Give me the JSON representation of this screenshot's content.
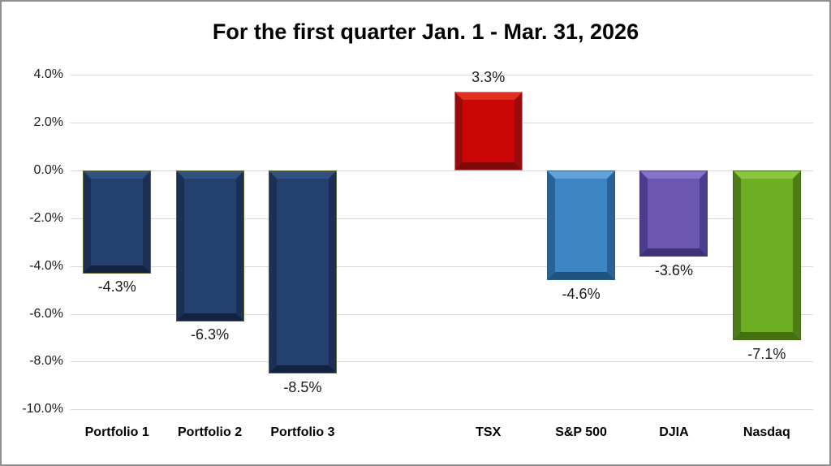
{
  "chart_data": {
    "type": "bar",
    "title": "For the first quarter Jan. 1 - Mar. 31, 2026",
    "categories": [
      "Portfolio 1",
      "Portfolio 2",
      "Portfolio 3",
      "",
      "TSX",
      "S&P 500",
      "DJIA",
      "Nasdaq"
    ],
    "values": [
      -4.3,
      -6.3,
      -8.5,
      null,
      3.3,
      -4.6,
      -3.6,
      -7.1
    ],
    "data_labels": [
      "-4.3%",
      "-6.3%",
      "-8.5%",
      null,
      "3.3%",
      "-4.6%",
      "-3.6%",
      "-7.1%"
    ],
    "bar_colors": [
      {
        "face": "#24406E",
        "light": "#32517F",
        "side": "#1B3054",
        "dark": "#13233F",
        "outline": "#50642B"
      },
      {
        "face": "#24406E",
        "light": "#32517F",
        "side": "#1B3054",
        "dark": "#13233F",
        "outline": "#50642B"
      },
      {
        "face": "#24406E",
        "light": "#32517F",
        "side": "#1B3054",
        "dark": "#13233F",
        "outline": "#50642B"
      },
      null,
      {
        "face": "#CB0606",
        "light": "#E03120",
        "side": "#9A0B0B",
        "dark": "#7E0909",
        "outline": "#C97D7D"
      },
      {
        "face": "#3E85C4",
        "light": "#61A2D8",
        "side": "#2A6296",
        "dark": "#1F527F",
        "outline": "#2C5E8C"
      },
      {
        "face": "#6B57B0",
        "light": "#8672C6",
        "side": "#4C3C8E",
        "dark": "#3F3178",
        "outline": "#473879"
      },
      {
        "face": "#6DAE23",
        "light": "#8BC63F",
        "side": "#4E7D18",
        "dark": "#447012",
        "outline": "#3F6B14"
      }
    ],
    "y_ticks": [
      {
        "label": "4.0%",
        "value": 4
      },
      {
        "label": "2.0%",
        "value": 2
      },
      {
        "label": "0.0%",
        "value": 0
      },
      {
        "label": "-2.0%",
        "value": -2
      },
      {
        "label": "-4.0%",
        "value": -4
      },
      {
        "label": "-6.0%",
        "value": -6
      },
      {
        "label": "-8.0%",
        "value": -8
      },
      {
        "label": "-10.0%",
        "value": -10
      }
    ],
    "ylim": [
      -10,
      4
    ],
    "xlabel": "",
    "ylabel": "",
    "grid": true,
    "legend": "none"
  },
  "colors": {
    "background": "#FFFFFF",
    "gridline": "#D9D9D9",
    "canvas_border": "#8F8F8F",
    "text": "#1A1A1A"
  }
}
